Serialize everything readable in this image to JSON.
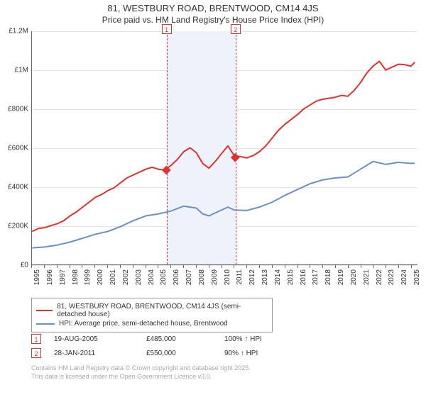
{
  "title": "81, WESTBURY ROAD, BRENTWOOD, CM14 4JS",
  "subtitle": "Price paid vs. HM Land Registry's House Price Index (HPI)",
  "chart": {
    "type": "line",
    "background_color": "#ffffff",
    "grid_color": "#e5e5e5",
    "axis_color": "#666666",
    "xlim": [
      1995,
      2025.5
    ],
    "ylim": [
      0,
      1200000
    ],
    "y_ticks": [
      {
        "v": 0,
        "label": "£0"
      },
      {
        "v": 200000,
        "label": "£200K"
      },
      {
        "v": 400000,
        "label": "£400K"
      },
      {
        "v": 600000,
        "label": "£600K"
      },
      {
        "v": 800000,
        "label": "£800K"
      },
      {
        "v": 1000000,
        "label": "£1M"
      },
      {
        "v": 1200000,
        "label": "£1.2M"
      }
    ],
    "x_ticks": [
      1995,
      1996,
      1997,
      1998,
      1999,
      2000,
      2001,
      2002,
      2003,
      2004,
      2005,
      2006,
      2007,
      2008,
      2009,
      2010,
      2011,
      2012,
      2013,
      2014,
      2015,
      2016,
      2017,
      2018,
      2019,
      2020,
      2021,
      2022,
      2023,
      2024,
      2025
    ],
    "shade_band": {
      "from": 2005.63,
      "to": 2011.08,
      "color": "#eef2fa"
    },
    "markers": [
      {
        "id": "1",
        "x": 2005.63
      },
      {
        "id": "2",
        "x": 2011.08
      }
    ],
    "series": [
      {
        "name": "81, WESTBURY ROAD, BRENTWOOD, CM14 4JS (semi-detached house)",
        "color": "#e03030",
        "line_width": 2,
        "points": [
          [
            1995,
            170000
          ],
          [
            1995.5,
            185000
          ],
          [
            1996,
            190000
          ],
          [
            1996.5,
            200000
          ],
          [
            1997,
            210000
          ],
          [
            1997.5,
            225000
          ],
          [
            1998,
            250000
          ],
          [
            1998.5,
            270000
          ],
          [
            1999,
            295000
          ],
          [
            1999.5,
            320000
          ],
          [
            2000,
            345000
          ],
          [
            2000.5,
            360000
          ],
          [
            2001,
            380000
          ],
          [
            2001.5,
            395000
          ],
          [
            2002,
            420000
          ],
          [
            2002.5,
            445000
          ],
          [
            2003,
            460000
          ],
          [
            2003.5,
            475000
          ],
          [
            2004,
            490000
          ],
          [
            2004.5,
            500000
          ],
          [
            2005,
            490000
          ],
          [
            2005.5,
            485000
          ],
          [
            2006,
            510000
          ],
          [
            2006.5,
            540000
          ],
          [
            2007,
            580000
          ],
          [
            2007.5,
            600000
          ],
          [
            2008,
            575000
          ],
          [
            2008.5,
            520000
          ],
          [
            2009,
            495000
          ],
          [
            2009.5,
            530000
          ],
          [
            2010,
            570000
          ],
          [
            2010.5,
            610000
          ],
          [
            2011,
            560000
          ],
          [
            2011.5,
            555000
          ],
          [
            2012,
            548000
          ],
          [
            2012.5,
            560000
          ],
          [
            2013,
            580000
          ],
          [
            2013.5,
            610000
          ],
          [
            2014,
            650000
          ],
          [
            2014.5,
            690000
          ],
          [
            2015,
            720000
          ],
          [
            2015.5,
            745000
          ],
          [
            2016,
            770000
          ],
          [
            2016.5,
            800000
          ],
          [
            2017,
            820000
          ],
          [
            2017.5,
            840000
          ],
          [
            2018,
            850000
          ],
          [
            2018.5,
            855000
          ],
          [
            2019,
            860000
          ],
          [
            2019.5,
            870000
          ],
          [
            2020,
            865000
          ],
          [
            2020.5,
            895000
          ],
          [
            2021,
            935000
          ],
          [
            2021.5,
            985000
          ],
          [
            2022,
            1020000
          ],
          [
            2022.5,
            1045000
          ],
          [
            2023,
            1000000
          ],
          [
            2023.5,
            1015000
          ],
          [
            2024,
            1030000
          ],
          [
            2024.5,
            1028000
          ],
          [
            2025,
            1020000
          ],
          [
            2025.3,
            1040000
          ]
        ]
      },
      {
        "name": "HPI: Average price, semi-detached house, Brentwood",
        "color": "#6a8fc9",
        "line_width": 2,
        "points": [
          [
            1995,
            85000
          ],
          [
            1996,
            90000
          ],
          [
            1997,
            100000
          ],
          [
            1998,
            115000
          ],
          [
            1999,
            135000
          ],
          [
            2000,
            155000
          ],
          [
            2001,
            170000
          ],
          [
            2002,
            195000
          ],
          [
            2003,
            225000
          ],
          [
            2004,
            250000
          ],
          [
            2005,
            260000
          ],
          [
            2006,
            275000
          ],
          [
            2007,
            300000
          ],
          [
            2008,
            290000
          ],
          [
            2008.5,
            260000
          ],
          [
            2009,
            250000
          ],
          [
            2010,
            280000
          ],
          [
            2010.5,
            295000
          ],
          [
            2011,
            280000
          ],
          [
            2012,
            278000
          ],
          [
            2013,
            295000
          ],
          [
            2014,
            320000
          ],
          [
            2015,
            355000
          ],
          [
            2016,
            385000
          ],
          [
            2017,
            415000
          ],
          [
            2018,
            435000
          ],
          [
            2019,
            445000
          ],
          [
            2020,
            450000
          ],
          [
            2021,
            490000
          ],
          [
            2022,
            530000
          ],
          [
            2023,
            515000
          ],
          [
            2024,
            525000
          ],
          [
            2025,
            520000
          ],
          [
            2025.3,
            520000
          ]
        ]
      }
    ],
    "price_points": [
      {
        "x": 2005.63,
        "y": 485000
      },
      {
        "x": 2011.08,
        "y": 550000
      }
    ]
  },
  "legend": {
    "items": [
      {
        "color": "#e03030",
        "label": "81, WESTBURY ROAD, BRENTWOOD, CM14 4JS (semi-detached house)"
      },
      {
        "color": "#6a8fc9",
        "label": "HPI: Average price, semi-detached house, Brentwood"
      }
    ]
  },
  "transactions": [
    {
      "id": "1",
      "date": "19-AUG-2005",
      "price": "£485,000",
      "pct": "100% ↑ HPI"
    },
    {
      "id": "2",
      "date": "28-JAN-2011",
      "price": "£550,000",
      "pct": "90% ↑ HPI"
    }
  ],
  "attribution": {
    "line1": "Contains HM Land Registry data © Crown copyright and database right 2025.",
    "line2": "This data is licensed under the Open Government Licence v3.0."
  },
  "fonts": {
    "tick_fontsize": 10,
    "title_fontsize": 13,
    "subtitle_fontsize": 12,
    "legend_fontsize": 10
  }
}
